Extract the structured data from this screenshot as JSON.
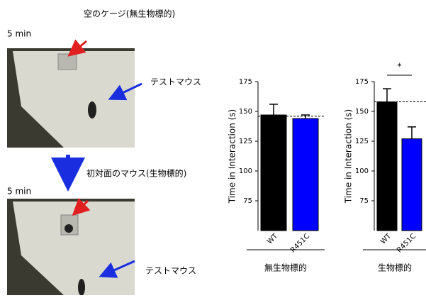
{
  "annotations": {
    "top_label": "空のケージ(無生物標的)",
    "time_1": "5 min",
    "mouse_1": "テストマウス",
    "middle_label": "初対面のマウス(生物標的)",
    "time_2": "5 min",
    "mouse_2": "テストマウス"
  },
  "chart_data": [
    {
      "type": "bar",
      "ylabel": "Time in Interaction (s)",
      "xlabel": "無生物標的",
      "categories": [
        "WT",
        "R451C"
      ],
      "values": [
        147,
        144
      ],
      "errors": [
        9,
        3
      ],
      "colors": [
        "#000000",
        "#0000ff"
      ],
      "ylim": [
        50,
        175
      ],
      "yticks": [
        75,
        100,
        125,
        150,
        175
      ],
      "reference_line": 146
    },
    {
      "type": "bar",
      "ylabel": "Time in Interaction (s)",
      "xlabel": "生物標的",
      "categories": [
        "WT",
        "R451C"
      ],
      "values": [
        158,
        127
      ],
      "errors": [
        11,
        10
      ],
      "colors": [
        "#000000",
        "#0000ff"
      ],
      "ylim": [
        50,
        175
      ],
      "yticks": [
        75,
        100,
        125,
        150,
        175
      ],
      "reference_line": 158,
      "significance": "*"
    }
  ]
}
